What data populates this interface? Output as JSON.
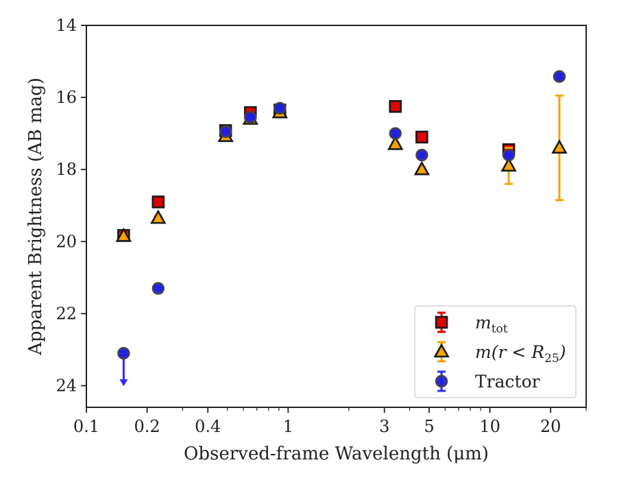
{
  "chart_data": {
    "type": "scatter",
    "xlabel": "Observed-frame Wavelength (μm)",
    "ylabel": "Apparent Brightness (AB mag)",
    "x_scale": "log",
    "xlim": [
      0.1,
      30
    ],
    "ylim": [
      24.6,
      14
    ],
    "y_inverted": true,
    "x_ticks": [
      0.1,
      0.2,
      0.4,
      1,
      3,
      5,
      10,
      20
    ],
    "x_tick_labels": [
      "0.1",
      "0.2",
      "0.4",
      "1",
      "3",
      "5",
      "10",
      "20"
    ],
    "y_ticks": [
      14,
      16,
      18,
      20,
      22,
      24
    ],
    "y_tick_labels": [
      "14",
      "16",
      "18",
      "20",
      "22",
      "24"
    ],
    "legend_position": "lower-right",
    "series": [
      {
        "name": "m_tot",
        "legend_label_main": "m",
        "legend_label_sub": "tot",
        "marker": "square",
        "color": "#e00000",
        "error_color": "#e00000",
        "points": [
          {
            "x": 0.153,
            "y": 19.83,
            "err": 0.1
          },
          {
            "x": 0.227,
            "y": 18.9,
            "err": 0.05
          },
          {
            "x": 0.49,
            "y": 16.92,
            "err": 0.05
          },
          {
            "x": 0.65,
            "y": 16.42,
            "err": 0.1
          },
          {
            "x": 0.91,
            "y": 16.35,
            "err": 0.05
          },
          {
            "x": 3.4,
            "y": 16.25,
            "err": 0.05
          },
          {
            "x": 4.6,
            "y": 17.1,
            "err": 0.05
          },
          {
            "x": 12.4,
            "y": 17.45,
            "err": 0.1
          }
        ]
      },
      {
        "name": "m(r<R25)",
        "legend_label_main": "m(r < R",
        "legend_label_sub": "25",
        "legend_label_end": ")",
        "marker": "triangle",
        "color": "#f5a400",
        "error_color": "#f5a400",
        "points": [
          {
            "x": 0.153,
            "y": 19.85,
            "err": 0.05
          },
          {
            "x": 0.227,
            "y": 19.35,
            "err": 0.05
          },
          {
            "x": 0.49,
            "y": 17.08,
            "err": 0.05
          },
          {
            "x": 0.65,
            "y": 16.6,
            "err": 0.05
          },
          {
            "x": 0.91,
            "y": 16.42,
            "err": 0.05
          },
          {
            "x": 3.4,
            "y": 17.3,
            "err": 0.05
          },
          {
            "x": 4.6,
            "y": 18.0,
            "err": 0.05
          },
          {
            "x": 12.4,
            "y": 17.9,
            "err": 0.5
          },
          {
            "x": 22.1,
            "y": 17.4,
            "err": 1.45
          }
        ]
      },
      {
        "name": "Tractor",
        "legend_label_main": "Tractor",
        "marker": "circle",
        "color": "#1f1fe0",
        "error_color": "#2b2bff",
        "points": [
          {
            "x": 0.153,
            "y": 23.1,
            "err": 0.05,
            "upper_limit": true
          },
          {
            "x": 0.227,
            "y": 21.3,
            "err": 0.05
          },
          {
            "x": 0.49,
            "y": 16.95,
            "err": 0.05
          },
          {
            "x": 0.65,
            "y": 16.55,
            "err": 0.05
          },
          {
            "x": 0.91,
            "y": 16.3,
            "err": 0.05
          },
          {
            "x": 3.4,
            "y": 17.0,
            "err": 0.05
          },
          {
            "x": 4.6,
            "y": 17.6,
            "err": 0.05
          },
          {
            "x": 12.4,
            "y": 17.6,
            "err": 0.05
          },
          {
            "x": 22.1,
            "y": 15.42,
            "err": 0.05
          }
        ]
      }
    ]
  }
}
